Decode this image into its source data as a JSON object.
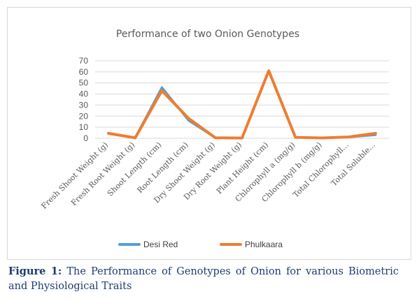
{
  "chart_data": {
    "type": "line",
    "title": "Performance of two Onion Genotypes",
    "categories": [
      "Fresh Shoot Weight (g)",
      "Fresh Root Weight (g)",
      "Shoot Length (cm)",
      "Root Length (cm)",
      "Dry Shoot Weight (g)",
      "Dry Root Weight (g)",
      "Plant Height (cm)",
      "Chlorophyll a (mg/g)",
      "Chlorophyll b (mg/g)",
      "Total Chlorophyll...",
      "Total Soluble..."
    ],
    "y_ticks": [
      "0",
      "10",
      "20",
      "30",
      "40",
      "50",
      "60",
      "70"
    ],
    "ylim": [
      0,
      70
    ],
    "grid": true,
    "legend_position": "bottom",
    "series": [
      {
        "name": "Desi Red",
        "color": "#5b9bd5",
        "values": [
          4,
          0.5,
          46,
          16,
          0.5,
          0.2,
          61,
          0.8,
          0.3,
          1,
          3
        ]
      },
      {
        "name": "Phulkaara",
        "color": "#ed7d31",
        "values": [
          4.5,
          0.4,
          43,
          18,
          0.5,
          0.2,
          61,
          0.9,
          0.3,
          1.2,
          4.5
        ]
      }
    ]
  },
  "caption": {
    "label": "Figure 1:",
    "text": "The Performance of Genotypes of Onion for various Biometric and Physiological Traits"
  }
}
